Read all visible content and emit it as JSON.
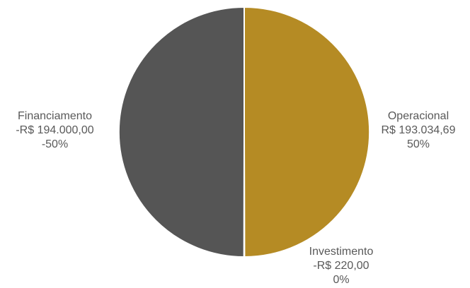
{
  "chart_data": {
    "type": "pie",
    "slices": [
      {
        "category": "Operacional",
        "value_text": "R$ 193.034,69",
        "percent_text": "50%",
        "share": 0.4997,
        "color": "#b58b24"
      },
      {
        "category": "Investimento",
        "value_text": "-R$ 220,00",
        "percent_text": "0%",
        "share": 0.0006,
        "color": "#b58b24"
      },
      {
        "category": "Financiamento",
        "value_text": "-R$ 194.000,00",
        "percent_text": "-50%",
        "share": 0.4997,
        "color": "#555555"
      }
    ],
    "legend": "none"
  }
}
